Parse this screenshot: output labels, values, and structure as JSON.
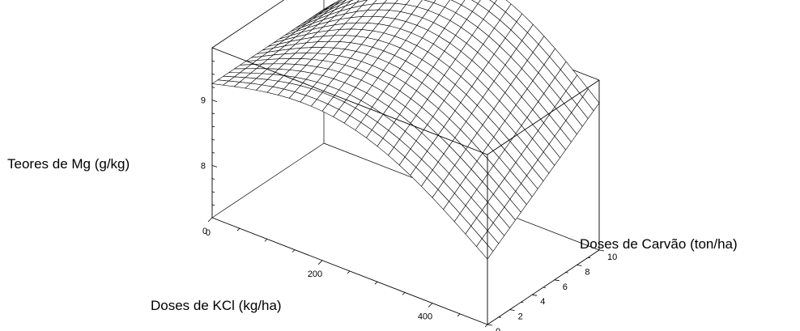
{
  "chart_data": {
    "type": "surface",
    "title": "",
    "xlabel": "Doses de KCl (kg/ha)",
    "ylabel": "Doses de Carvão (ton/ha)",
    "zlabel": "Teores de Mg (g/kg)",
    "xlim": [
      0,
      500
    ],
    "ylim": [
      0,
      10
    ],
    "zlim": [
      7.2,
      9.8
    ],
    "x_ticks": [
      0,
      200,
      400
    ],
    "y_ticks": [
      0,
      2,
      4,
      6,
      8,
      10
    ],
    "z_ticks": [
      8,
      9
    ],
    "x_grid": [
      0,
      20,
      40,
      60,
      80,
      100,
      120,
      140,
      160,
      180,
      200,
      220,
      240,
      260,
      280,
      300,
      320,
      340,
      360,
      380,
      400,
      420,
      440,
      460,
      480,
      500
    ],
    "y_grid": [
      0,
      0.5,
      1,
      1.5,
      2,
      2.5,
      3,
      3.5,
      4,
      4.5,
      5,
      5.5,
      6,
      6.5,
      7,
      7.5,
      8,
      8.5,
      9,
      9.5,
      10
    ],
    "z_corner_values": {
      "x0_y0": 9.25,
      "x0_y10": 9.25,
      "x500_y0": 8.2,
      "x500_y10": 9.45
    },
    "box": true,
    "mesh": true
  }
}
